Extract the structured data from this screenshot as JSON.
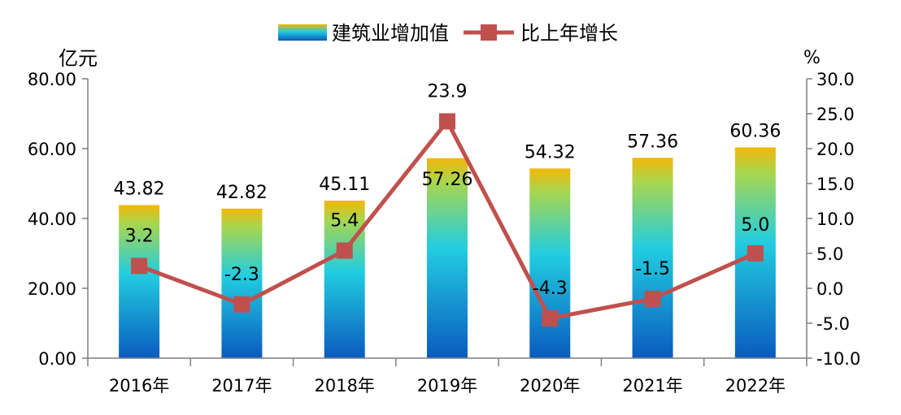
{
  "chart_data": {
    "type": "bar+line",
    "title": "",
    "categories": [
      "2016年",
      "2017年",
      "2018年",
      "2019年",
      "2020年",
      "2021年",
      "2022年"
    ],
    "series": [
      {
        "name": "建筑业增加值",
        "type": "bar",
        "axis": "left",
        "values": [
          43.82,
          42.82,
          45.11,
          57.26,
          54.32,
          57.36,
          60.36
        ],
        "labels": [
          "43.82",
          "42.82",
          "45.11",
          "57.26",
          "54.32",
          "57.36",
          "60.36"
        ]
      },
      {
        "name": "比上年增长",
        "type": "line",
        "axis": "right",
        "values": [
          3.2,
          -2.3,
          5.4,
          23.9,
          -4.3,
          -1.5,
          5.0
        ],
        "labels": [
          "3.2",
          "-2.3",
          "5.4",
          "23.9",
          "-4.3",
          "-1.5",
          "5.0"
        ],
        "color": "#c0504d"
      }
    ],
    "left_axis": {
      "unit": "亿元",
      "min": 0,
      "max": 80,
      "ticks": [
        "0.00",
        "20.00",
        "40.00",
        "60.00",
        "80.00"
      ]
    },
    "right_axis": {
      "unit": "%",
      "min": -10,
      "max": 30,
      "ticks": [
        "-10.0",
        "-5.0",
        "0.0",
        "5.0",
        "10.0",
        "15.0",
        "20.0",
        "25.0",
        "30.0"
      ]
    },
    "legend": {
      "position": "top",
      "items": [
        {
          "label": "建筑业增加值",
          "icon": "gradient-bar-swatch"
        },
        {
          "label": "比上年增长",
          "icon": "line-square-marker"
        }
      ]
    },
    "colors": {
      "bar_bottom": "#0a5bbf",
      "bar_mid": "#22cde0",
      "bar_top": "#f2b70a",
      "line": "#c0504d",
      "axis": "#7f7f7f"
    }
  }
}
